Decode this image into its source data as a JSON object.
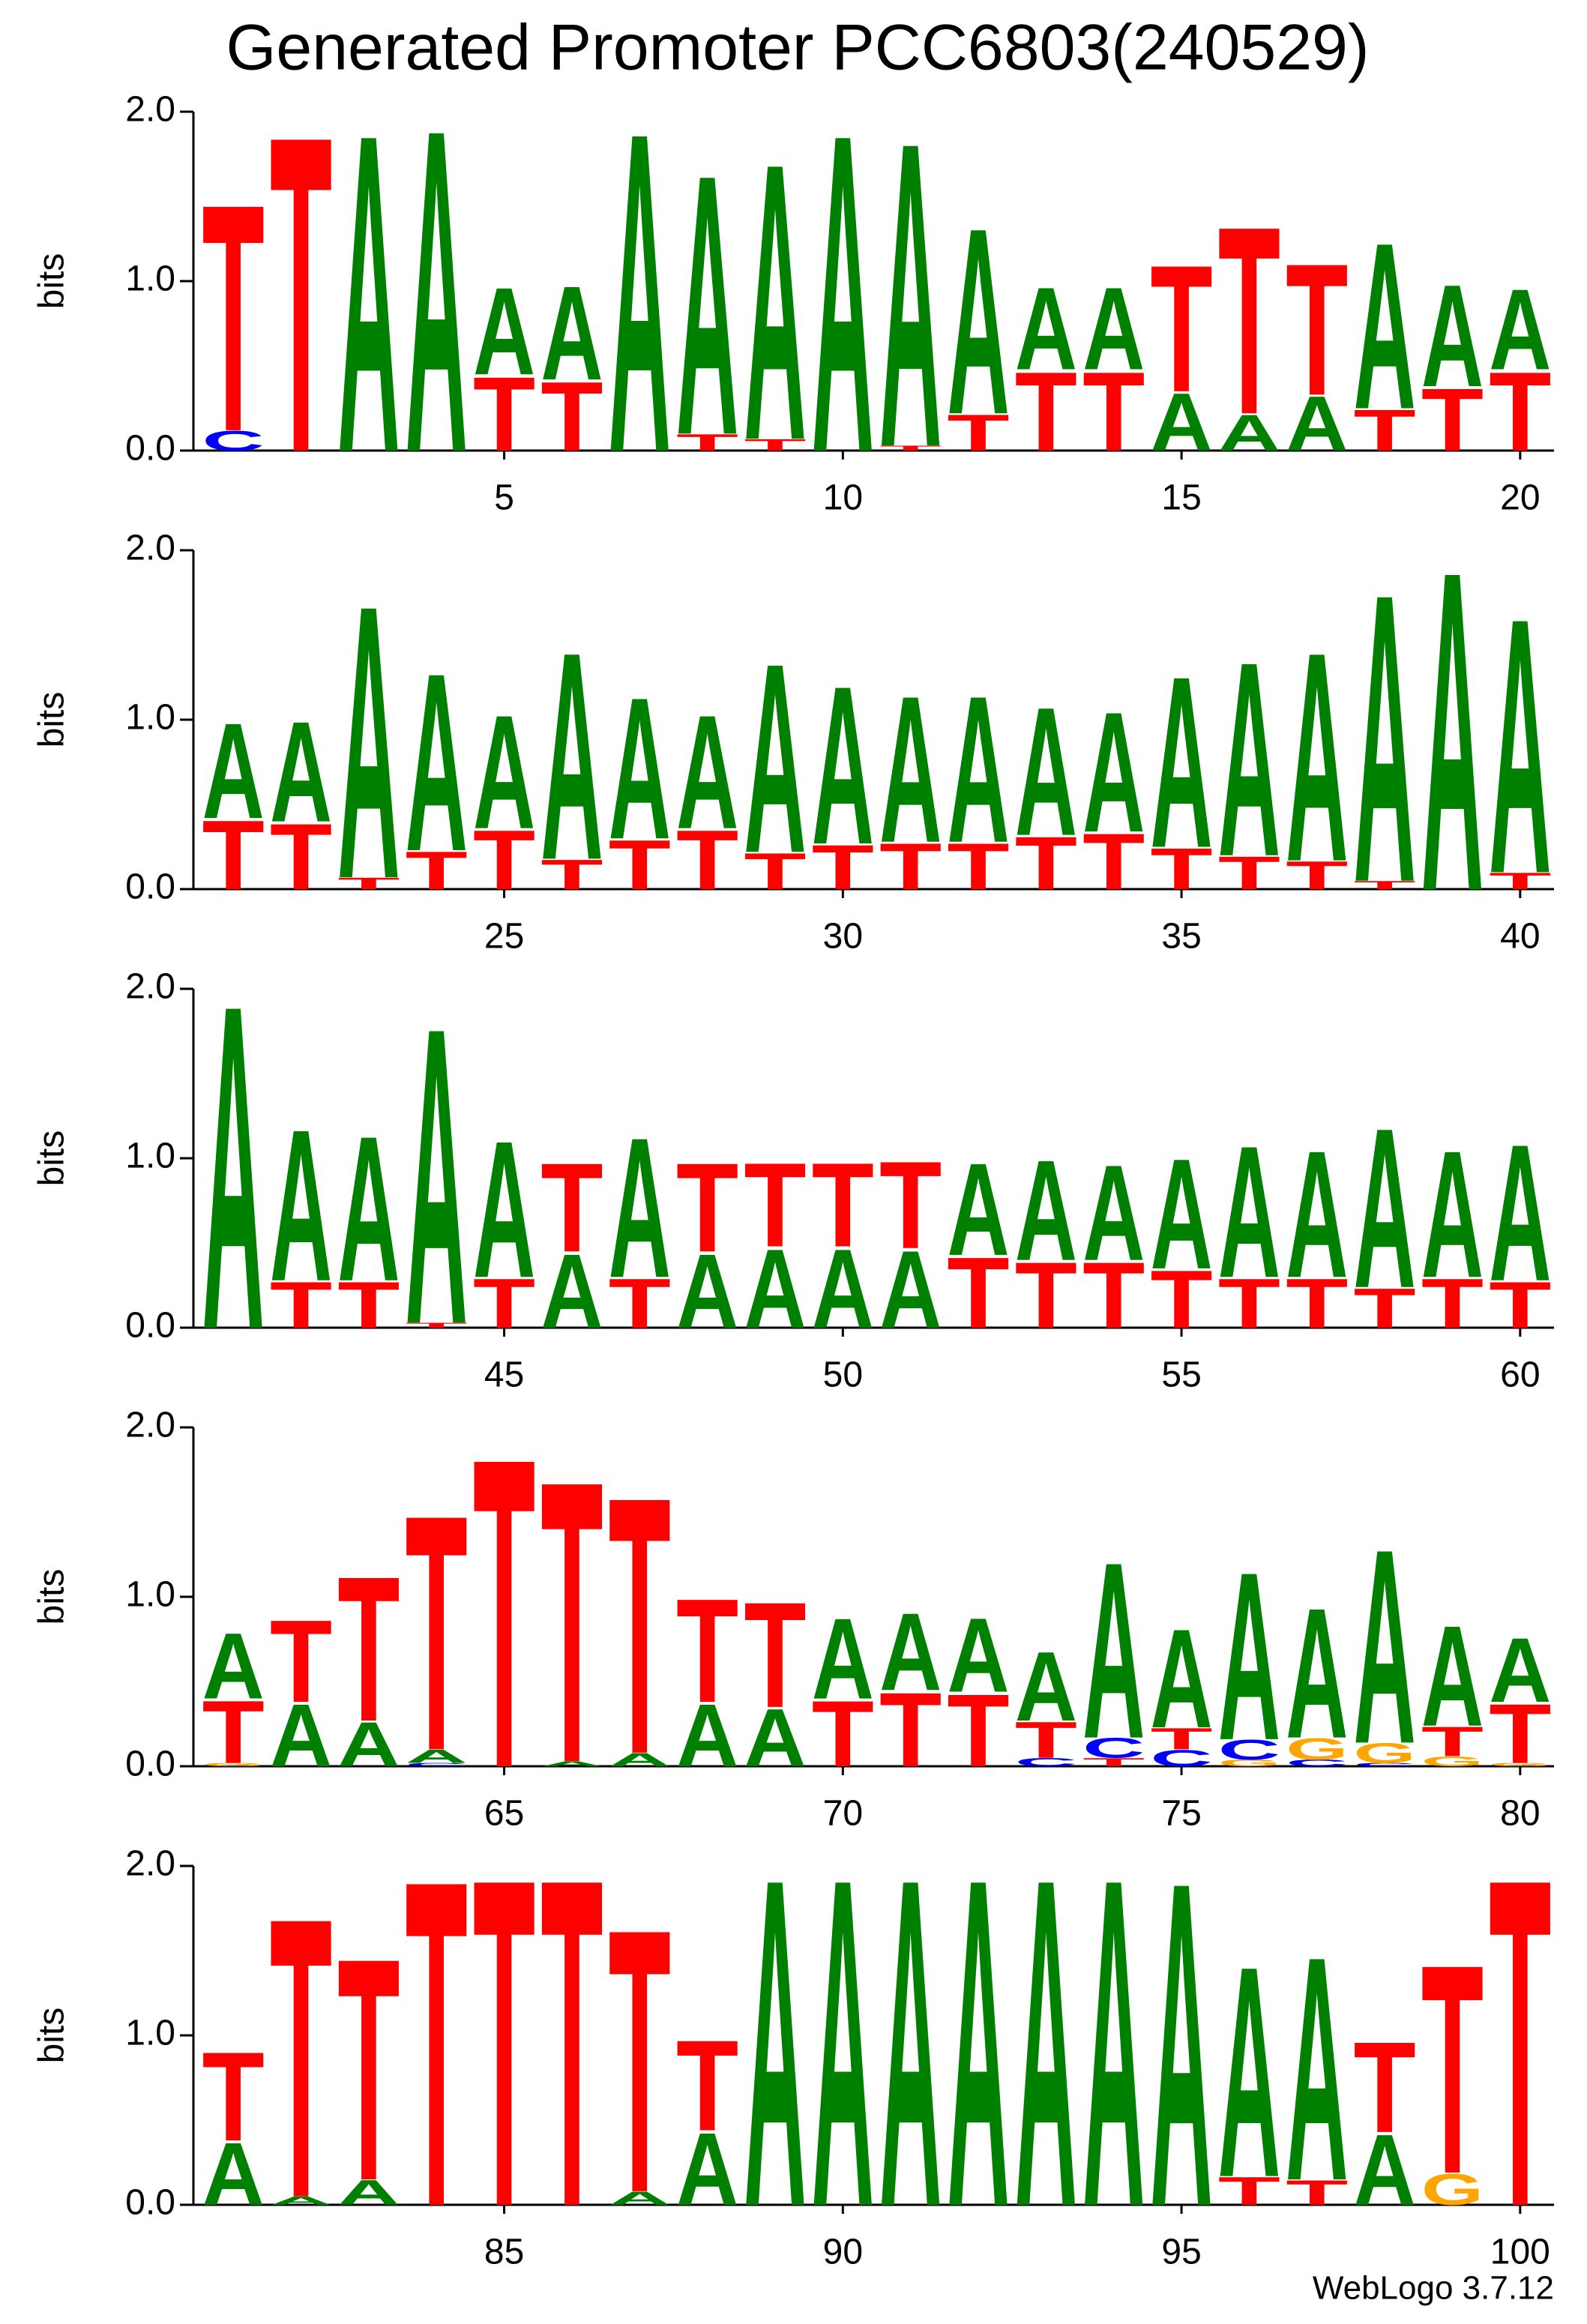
{
  "title": "Generated Promoter PCC6803(240529)",
  "footer": "WebLogo 3.7.12",
  "chart_data": [
    {
      "type": "logo",
      "ylabel": "bits",
      "x": [
        1,
        2,
        3,
        4,
        5,
        6,
        7,
        8,
        9,
        10,
        11,
        12,
        13,
        14,
        15,
        16,
        17,
        18,
        19,
        20
      ],
      "xlim": [
        0.5,
        20.5
      ],
      "xticks": [
        5,
        10,
        15,
        20
      ],
      "ylim": [
        0,
        2
      ],
      "yticks": [
        {
          "value": 0,
          "label": "0.0"
        },
        {
          "value": 1,
          "label": "1.0"
        },
        {
          "value": 2,
          "label": "2.0"
        }
      ],
      "series": [
        {
          "name": "A",
          "color": "#008000",
          "values": [
            0,
            0,
            1.93,
            1.96,
            0.53,
            0.57,
            1.94,
            1.58,
            1.68,
            1.93,
            1.85,
            1.13,
            0.5,
            0.5,
            0.35,
            0.22,
            0.33,
            1.01,
            0.62,
            0.49
          ]
        },
        {
          "name": "C",
          "color": "#0000ff",
          "values": [
            0.12,
            0,
            0,
            0,
            0,
            0,
            0,
            0,
            0,
            0,
            0,
            0,
            0,
            0,
            0,
            0,
            0,
            0,
            0,
            0
          ]
        },
        {
          "name": "G",
          "color": "#ffa500",
          "values": [
            0,
            0,
            0,
            0,
            0,
            0,
            0,
            0,
            0,
            0,
            0,
            0,
            0,
            0,
            0,
            0,
            0,
            0,
            0,
            0
          ]
        },
        {
          "name": "T",
          "color": "#ff0000",
          "values": [
            1.38,
            1.92,
            0,
            0,
            0.45,
            0.42,
            0,
            0.1,
            0.07,
            0,
            0.03,
            0.22,
            0.48,
            0.48,
            0.77,
            1.14,
            0.8,
            0.25,
            0.38,
            0.48
          ]
        }
      ]
    },
    {
      "type": "logo",
      "ylabel": "bits",
      "x": [
        21,
        22,
        23,
        24,
        25,
        26,
        27,
        28,
        29,
        30,
        31,
        32,
        33,
        34,
        35,
        36,
        37,
        38,
        39,
        40
      ],
      "xlim": [
        20.5,
        40.5
      ],
      "xticks": [
        25,
        30,
        35,
        40
      ],
      "ylim": [
        0,
        2
      ],
      "yticks": [
        {
          "value": 0,
          "label": "0.0"
        },
        {
          "value": 1,
          "label": "1.0"
        },
        {
          "value": 2,
          "label": "2.0"
        }
      ],
      "series": [
        {
          "name": "A",
          "color": "#008000",
          "values": [
            0.58,
            0.61,
            1.66,
            1.08,
            0.69,
            1.26,
            0.86,
            0.69,
            1.15,
            0.96,
            0.89,
            0.89,
            0.78,
            0.73,
            1.04,
            1.18,
            1.27,
            1.75,
            1.94,
            1.55
          ]
        },
        {
          "name": "C",
          "color": "#0000ff",
          "values": [
            0,
            0,
            0,
            0,
            0,
            0,
            0,
            0,
            0,
            0,
            0,
            0,
            0,
            0,
            0,
            0,
            0,
            0,
            0,
            0
          ]
        },
        {
          "name": "G",
          "color": "#ffa500",
          "values": [
            0,
            0,
            0,
            0,
            0,
            0,
            0,
            0,
            0,
            0,
            0,
            0,
            0,
            0,
            0,
            0,
            0,
            0,
            0,
            0
          ]
        },
        {
          "name": "T",
          "color": "#ff0000",
          "values": [
            0.42,
            0.4,
            0.07,
            0.23,
            0.36,
            0.18,
            0.3,
            0.36,
            0.22,
            0.27,
            0.28,
            0.28,
            0.32,
            0.34,
            0.25,
            0.2,
            0.17,
            0.05,
            0,
            0.1
          ]
        }
      ]
    },
    {
      "type": "logo",
      "ylabel": "bits",
      "x": [
        41,
        42,
        43,
        44,
        45,
        46,
        47,
        48,
        49,
        50,
        51,
        52,
        53,
        54,
        55,
        56,
        57,
        58,
        59,
        60
      ],
      "xlim": [
        40.5,
        60.5
      ],
      "xticks": [
        45,
        50,
        55,
        60
      ],
      "ylim": [
        0,
        2
      ],
      "yticks": [
        {
          "value": 0,
          "label": "0.0"
        },
        {
          "value": 1,
          "label": "1.0"
        },
        {
          "value": 2,
          "label": "2.0"
        }
      ],
      "series": [
        {
          "name": "A",
          "color": "#008000",
          "values": [
            1.97,
            0.92,
            0.88,
            1.8,
            0.83,
            0.45,
            0.85,
            0.45,
            0.48,
            0.48,
            0.47,
            0.56,
            0.61,
            0.58,
            0.67,
            0.8,
            0.77,
            0.97,
            0.77,
            0.83
          ]
        },
        {
          "name": "C",
          "color": "#0000ff",
          "values": [
            0,
            0,
            0,
            0,
            0,
            0,
            0,
            0,
            0,
            0,
            0,
            0,
            0,
            0,
            0,
            0,
            0,
            0,
            0,
            0
          ]
        },
        {
          "name": "G",
          "color": "#ffa500",
          "values": [
            0,
            0,
            0,
            0,
            0,
            0,
            0,
            0,
            0,
            0,
            0,
            0,
            0,
            0,
            0,
            0,
            0,
            0,
            0,
            0
          ]
        },
        {
          "name": "T",
          "color": "#ff0000",
          "values": [
            0,
            0.28,
            0.28,
            0.03,
            0.3,
            0.54,
            0.3,
            0.54,
            0.51,
            0.51,
            0.53,
            0.43,
            0.4,
            0.4,
            0.35,
            0.3,
            0.3,
            0.24,
            0.3,
            0.28
          ]
        }
      ]
    },
    {
      "type": "logo",
      "ylabel": "bits",
      "x": [
        61,
        62,
        63,
        64,
        65,
        66,
        67,
        68,
        69,
        70,
        71,
        72,
        73,
        74,
        75,
        76,
        77,
        78,
        79,
        80
      ],
      "xlim": [
        60.5,
        80.5
      ],
      "xticks": [
        65,
        70,
        75,
        80
      ],
      "ylim": [
        0,
        2
      ],
      "yticks": [
        {
          "value": 0,
          "label": "0.0"
        },
        {
          "value": 1,
          "label": "1.0"
        },
        {
          "value": 2,
          "label": "2.0"
        }
      ],
      "series": [
        {
          "name": "A",
          "color": "#008000",
          "values": [
            0.4,
            0.38,
            0.27,
            0.08,
            0,
            0.03,
            0.08,
            0.38,
            0.35,
            0.49,
            0.47,
            0.45,
            0.42,
            1.07,
            0.6,
            1.02,
            0.79,
            1.18,
            0.61,
            0.39
          ]
        },
        {
          "name": "C",
          "color": "#0000ff",
          "values": [
            0,
            0,
            0,
            0.02,
            0,
            0,
            0,
            0,
            0,
            0,
            0,
            0,
            0.05,
            0.12,
            0.1,
            0.12,
            0.04,
            0.02,
            0,
            0
          ]
        },
        {
          "name": "G",
          "color": "#ffa500",
          "values": [
            0.02,
            0,
            0,
            0,
            0,
            0,
            0,
            0,
            0,
            0,
            0,
            0,
            0,
            0,
            0,
            0.04,
            0.13,
            0.12,
            0.06,
            0.02
          ]
        },
        {
          "name": "T",
          "color": "#ff0000",
          "values": [
            0.38,
            0.5,
            0.88,
            1.43,
            1.88,
            1.71,
            1.56,
            0.63,
            0.64,
            0.4,
            0.45,
            0.44,
            0.22,
            0.05,
            0.13,
            0,
            0,
            0,
            0.18,
            0.36
          ]
        }
      ]
    },
    {
      "type": "logo",
      "ylabel": "bits",
      "x": [
        81,
        82,
        83,
        84,
        85,
        86,
        87,
        88,
        89,
        90,
        91,
        92,
        93,
        94,
        95,
        96,
        97,
        98,
        99,
        100
      ],
      "xlim": [
        80.5,
        100.5
      ],
      "xticks": [
        85,
        90,
        95,
        100
      ],
      "ylim": [
        0,
        2
      ],
      "yticks": [
        {
          "value": 0,
          "label": "0.0"
        },
        {
          "value": 1,
          "label": "1.0"
        },
        {
          "value": 2,
          "label": "2.0"
        }
      ],
      "series": [
        {
          "name": "A",
          "color": "#008000",
          "values": [
            0.38,
            0.05,
            0.15,
            0,
            0,
            0,
            0.08,
            0.44,
            1.99,
            1.99,
            1.99,
            1.99,
            1.99,
            1.99,
            1.97,
            1.28,
            1.36,
            0.43,
            0,
            0
          ]
        },
        {
          "name": "C",
          "color": "#0000ff",
          "values": [
            0,
            0,
            0,
            0,
            0,
            0,
            0,
            0,
            0,
            0,
            0,
            0,
            0,
            0,
            0,
            0,
            0,
            0,
            0,
            0
          ]
        },
        {
          "name": "G",
          "color": "#ffa500",
          "values": [
            0,
            0,
            0,
            0,
            0,
            0,
            0,
            0,
            0,
            0,
            0,
            0,
            0,
            0,
            0,
            0,
            0,
            0,
            0.19,
            0
          ]
        },
        {
          "name": "T",
          "color": "#ff0000",
          "values": [
            0.54,
            1.7,
            1.35,
            1.98,
            1.99,
            1.99,
            1.6,
            0.55,
            0,
            0,
            0,
            0,
            0,
            0,
            0,
            0.17,
            0.15,
            0.55,
            1.27,
            1.99
          ]
        }
      ]
    }
  ]
}
